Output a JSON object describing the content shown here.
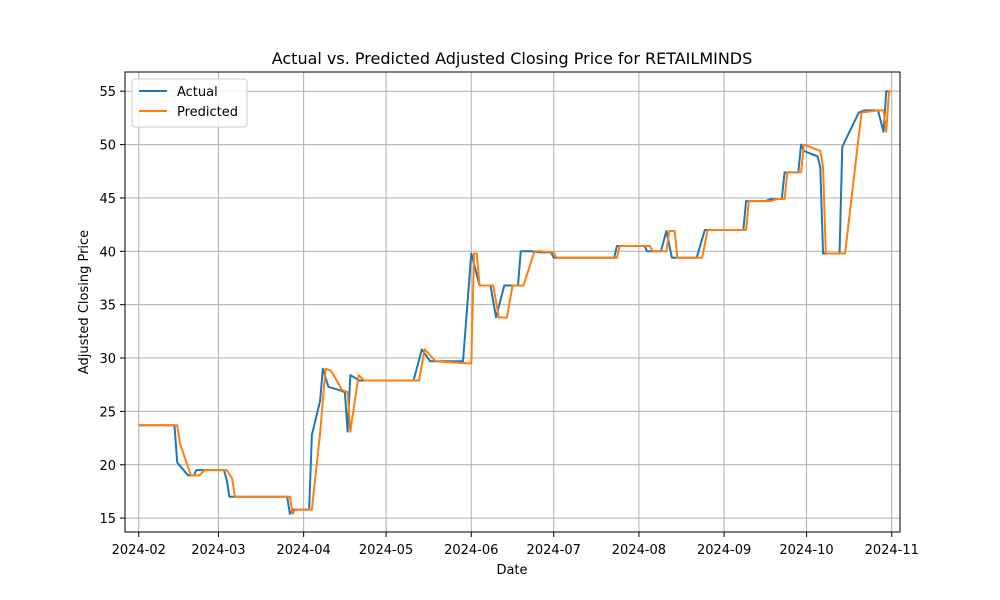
{
  "chart_data": {
    "type": "line",
    "title": "Actual vs. Predicted Adjusted Closing Price for RETAILMINDS",
    "xlabel": "Date",
    "ylabel": "Adjusted Closing Price",
    "x_range": [
      "2024-01-27",
      "2024-11-04"
    ],
    "ylim": [
      13.7,
      56.8
    ],
    "x_ticks": [
      "2024-02",
      "2024-03",
      "2024-04",
      "2024-05",
      "2024-06",
      "2024-07",
      "2024-08",
      "2024-09",
      "2024-10",
      "2024-11"
    ],
    "x_tick_dates": [
      "2024-02-01",
      "2024-03-01",
      "2024-04-01",
      "2024-05-01",
      "2024-06-01",
      "2024-07-01",
      "2024-08-01",
      "2024-09-01",
      "2024-10-01",
      "2024-11-01"
    ],
    "y_ticks": [
      15,
      20,
      25,
      30,
      35,
      40,
      45,
      50,
      55
    ],
    "grid": true,
    "legend_position": "upper-left",
    "series": [
      {
        "name": "Actual",
        "color": "#1f77b4",
        "points": [
          [
            "2024-02-01",
            23.7
          ],
          [
            "2024-02-14",
            23.7
          ],
          [
            "2024-02-15",
            20.2
          ],
          [
            "2024-02-19",
            19.0
          ],
          [
            "2024-02-21",
            19.0
          ],
          [
            "2024-02-22",
            19.5
          ],
          [
            "2024-03-03",
            19.5
          ],
          [
            "2024-03-04",
            18.6
          ],
          [
            "2024-03-05",
            17.0
          ],
          [
            "2024-03-26",
            17.0
          ],
          [
            "2024-03-27",
            15.4
          ],
          [
            "2024-03-28",
            15.8
          ],
          [
            "2024-04-03",
            15.8
          ],
          [
            "2024-04-04",
            22.8
          ],
          [
            "2024-04-07",
            26.0
          ],
          [
            "2024-04-08",
            29.0
          ],
          [
            "2024-04-10",
            27.3
          ],
          [
            "2024-04-14",
            27.0
          ],
          [
            "2024-04-16",
            26.8
          ],
          [
            "2024-04-17",
            23.1
          ],
          [
            "2024-04-18",
            28.4
          ],
          [
            "2024-04-20",
            28.1
          ],
          [
            "2024-04-21",
            27.9
          ],
          [
            "2024-05-11",
            27.9
          ],
          [
            "2024-05-14",
            30.8
          ],
          [
            "2024-05-17",
            29.7
          ],
          [
            "2024-05-29",
            29.7
          ],
          [
            "2024-06-01",
            39.8
          ],
          [
            "2024-06-04",
            36.8
          ],
          [
            "2024-06-08",
            36.8
          ],
          [
            "2024-06-10",
            33.8
          ],
          [
            "2024-06-13",
            36.8
          ],
          [
            "2024-06-18",
            36.8
          ],
          [
            "2024-06-19",
            40.0
          ],
          [
            "2024-06-23",
            40.0
          ],
          [
            "2024-06-26",
            39.9
          ],
          [
            "2024-06-30",
            39.9
          ],
          [
            "2024-07-01",
            39.4
          ],
          [
            "2024-07-23",
            39.4
          ],
          [
            "2024-07-24",
            40.5
          ],
          [
            "2024-08-03",
            40.5
          ],
          [
            "2024-08-04",
            40.0
          ],
          [
            "2024-08-09",
            40.0
          ],
          [
            "2024-08-11",
            41.9
          ],
          [
            "2024-08-13",
            39.4
          ],
          [
            "2024-08-22",
            39.4
          ],
          [
            "2024-08-25",
            42.0
          ],
          [
            "2024-09-08",
            42.0
          ],
          [
            "2024-09-09",
            44.7
          ],
          [
            "2024-09-16",
            44.7
          ],
          [
            "2024-09-18",
            44.9
          ],
          [
            "2024-09-22",
            44.9
          ],
          [
            "2024-09-23",
            47.4
          ],
          [
            "2024-09-28",
            47.4
          ],
          [
            "2024-09-29",
            50.0
          ],
          [
            "2024-09-30",
            49.4
          ],
          [
            "2024-10-05",
            48.9
          ],
          [
            "2024-10-06",
            47.9
          ],
          [
            "2024-10-07",
            39.8
          ],
          [
            "2024-10-13",
            39.8
          ],
          [
            "2024-10-14",
            49.8
          ],
          [
            "2024-10-20",
            53.0
          ],
          [
            "2024-10-22",
            53.2
          ],
          [
            "2024-10-27",
            53.2
          ],
          [
            "2024-10-29",
            51.2
          ],
          [
            "2024-10-30",
            55.0
          ],
          [
            "2024-10-31",
            55.0
          ]
        ]
      },
      {
        "name": "Predicted",
        "color": "#ff7f0e",
        "points": [
          [
            "2024-02-01",
            23.7
          ],
          [
            "2024-02-15",
            23.7
          ],
          [
            "2024-02-16",
            22.0
          ],
          [
            "2024-02-20",
            19.0
          ],
          [
            "2024-02-23",
            19.0
          ],
          [
            "2024-02-25",
            19.5
          ],
          [
            "2024-03-04",
            19.5
          ],
          [
            "2024-03-06",
            18.7
          ],
          [
            "2024-03-07",
            17.0
          ],
          [
            "2024-03-27",
            17.0
          ],
          [
            "2024-03-28",
            15.4
          ],
          [
            "2024-03-29",
            15.8
          ],
          [
            "2024-04-04",
            15.8
          ],
          [
            "2024-04-07",
            23.0
          ],
          [
            "2024-04-09",
            29.0
          ],
          [
            "2024-04-11",
            28.8
          ],
          [
            "2024-04-15",
            27.0
          ],
          [
            "2024-04-17",
            26.8
          ],
          [
            "2024-04-18",
            23.1
          ],
          [
            "2024-04-21",
            28.4
          ],
          [
            "2024-04-23",
            27.9
          ],
          [
            "2024-05-13",
            27.9
          ],
          [
            "2024-05-15",
            30.8
          ],
          [
            "2024-05-19",
            29.7
          ],
          [
            "2024-05-31",
            29.5
          ],
          [
            "2024-06-01",
            29.5
          ],
          [
            "2024-06-02",
            39.8
          ],
          [
            "2024-06-03",
            39.8
          ],
          [
            "2024-06-04",
            36.8
          ],
          [
            "2024-06-09",
            36.8
          ],
          [
            "2024-06-11",
            33.8
          ],
          [
            "2024-06-14",
            33.8
          ],
          [
            "2024-06-16",
            36.8
          ],
          [
            "2024-06-20",
            36.8
          ],
          [
            "2024-06-24",
            40.0
          ],
          [
            "2024-06-26",
            40.0
          ],
          [
            "2024-07-01",
            39.9
          ],
          [
            "2024-07-02",
            39.4
          ],
          [
            "2024-07-24",
            39.4
          ],
          [
            "2024-07-25",
            40.5
          ],
          [
            "2024-08-05",
            40.5
          ],
          [
            "2024-08-06",
            40.0
          ],
          [
            "2024-08-11",
            40.0
          ],
          [
            "2024-08-12",
            41.9
          ],
          [
            "2024-08-14",
            41.9
          ],
          [
            "2024-08-15",
            39.4
          ],
          [
            "2024-08-24",
            39.4
          ],
          [
            "2024-08-26",
            42.0
          ],
          [
            "2024-09-09",
            42.0
          ],
          [
            "2024-09-10",
            44.7
          ],
          [
            "2024-09-18",
            44.7
          ],
          [
            "2024-09-20",
            44.9
          ],
          [
            "2024-09-23",
            44.9
          ],
          [
            "2024-09-24",
            47.4
          ],
          [
            "2024-09-29",
            47.4
          ],
          [
            "2024-09-30",
            50.0
          ],
          [
            "2024-10-06",
            49.4
          ],
          [
            "2024-10-07",
            47.9
          ],
          [
            "2024-10-08",
            39.8
          ],
          [
            "2024-10-15",
            39.8
          ],
          [
            "2024-10-21",
            53.0
          ],
          [
            "2024-10-27",
            53.2
          ],
          [
            "2024-10-29",
            53.2
          ],
          [
            "2024-10-30",
            51.2
          ],
          [
            "2024-10-31",
            55.0
          ],
          [
            "2024-11-01",
            55.0
          ]
        ]
      }
    ]
  }
}
